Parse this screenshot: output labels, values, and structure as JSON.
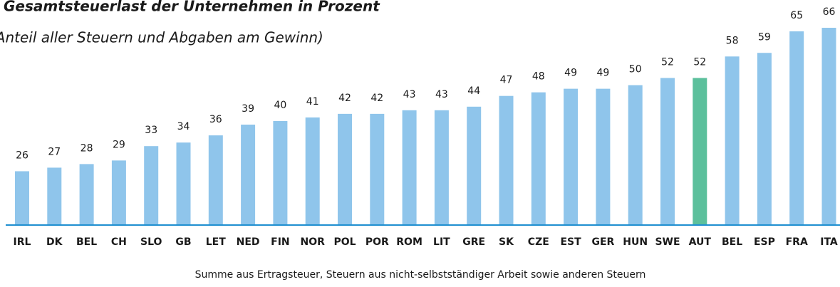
{
  "chart_data": {
    "type": "bar",
    "title": "Gesamtsteuerlast der Unternehmen in Prozent",
    "subtitle": "(Anteil aller Steuern und Abgaben am Gewinn)",
    "footnote": "Summe aus Ertragsteuer, Steuern aus nicht-selbstständiger Arbeit sowie anderen Steuern",
    "categories": [
      "IRL",
      "DK",
      "BEL",
      "CH",
      "SLO",
      "GB",
      "LET",
      "NED",
      "FIN",
      "NOR",
      "POL",
      "POR",
      "ROM",
      "LIT",
      "GRE",
      "SK",
      "CZE",
      "EST",
      "GER",
      "HUN",
      "SWE",
      "AUT",
      "BEL",
      "ESP",
      "FRA",
      "ITA"
    ],
    "values": [
      26,
      27,
      28,
      29,
      33,
      34,
      36,
      39,
      40,
      41,
      42,
      42,
      43,
      43,
      44,
      47,
      48,
      49,
      49,
      50,
      52,
      52,
      58,
      59,
      65,
      66
    ],
    "colors": [
      "#8fc5eb",
      "#8fc5eb",
      "#8fc5eb",
      "#8fc5eb",
      "#8fc5eb",
      "#8fc5eb",
      "#8fc5eb",
      "#8fc5eb",
      "#8fc5eb",
      "#8fc5eb",
      "#8fc5eb",
      "#8fc5eb",
      "#8fc5eb",
      "#8fc5eb",
      "#8fc5eb",
      "#8fc5eb",
      "#8fc5eb",
      "#8fc5eb",
      "#8fc5eb",
      "#8fc5eb",
      "#8fc5eb",
      "#5cc09c",
      "#8fc5eb",
      "#8fc5eb",
      "#8fc5eb",
      "#8fc5eb"
    ],
    "ylim": [
      11,
      66
    ]
  }
}
